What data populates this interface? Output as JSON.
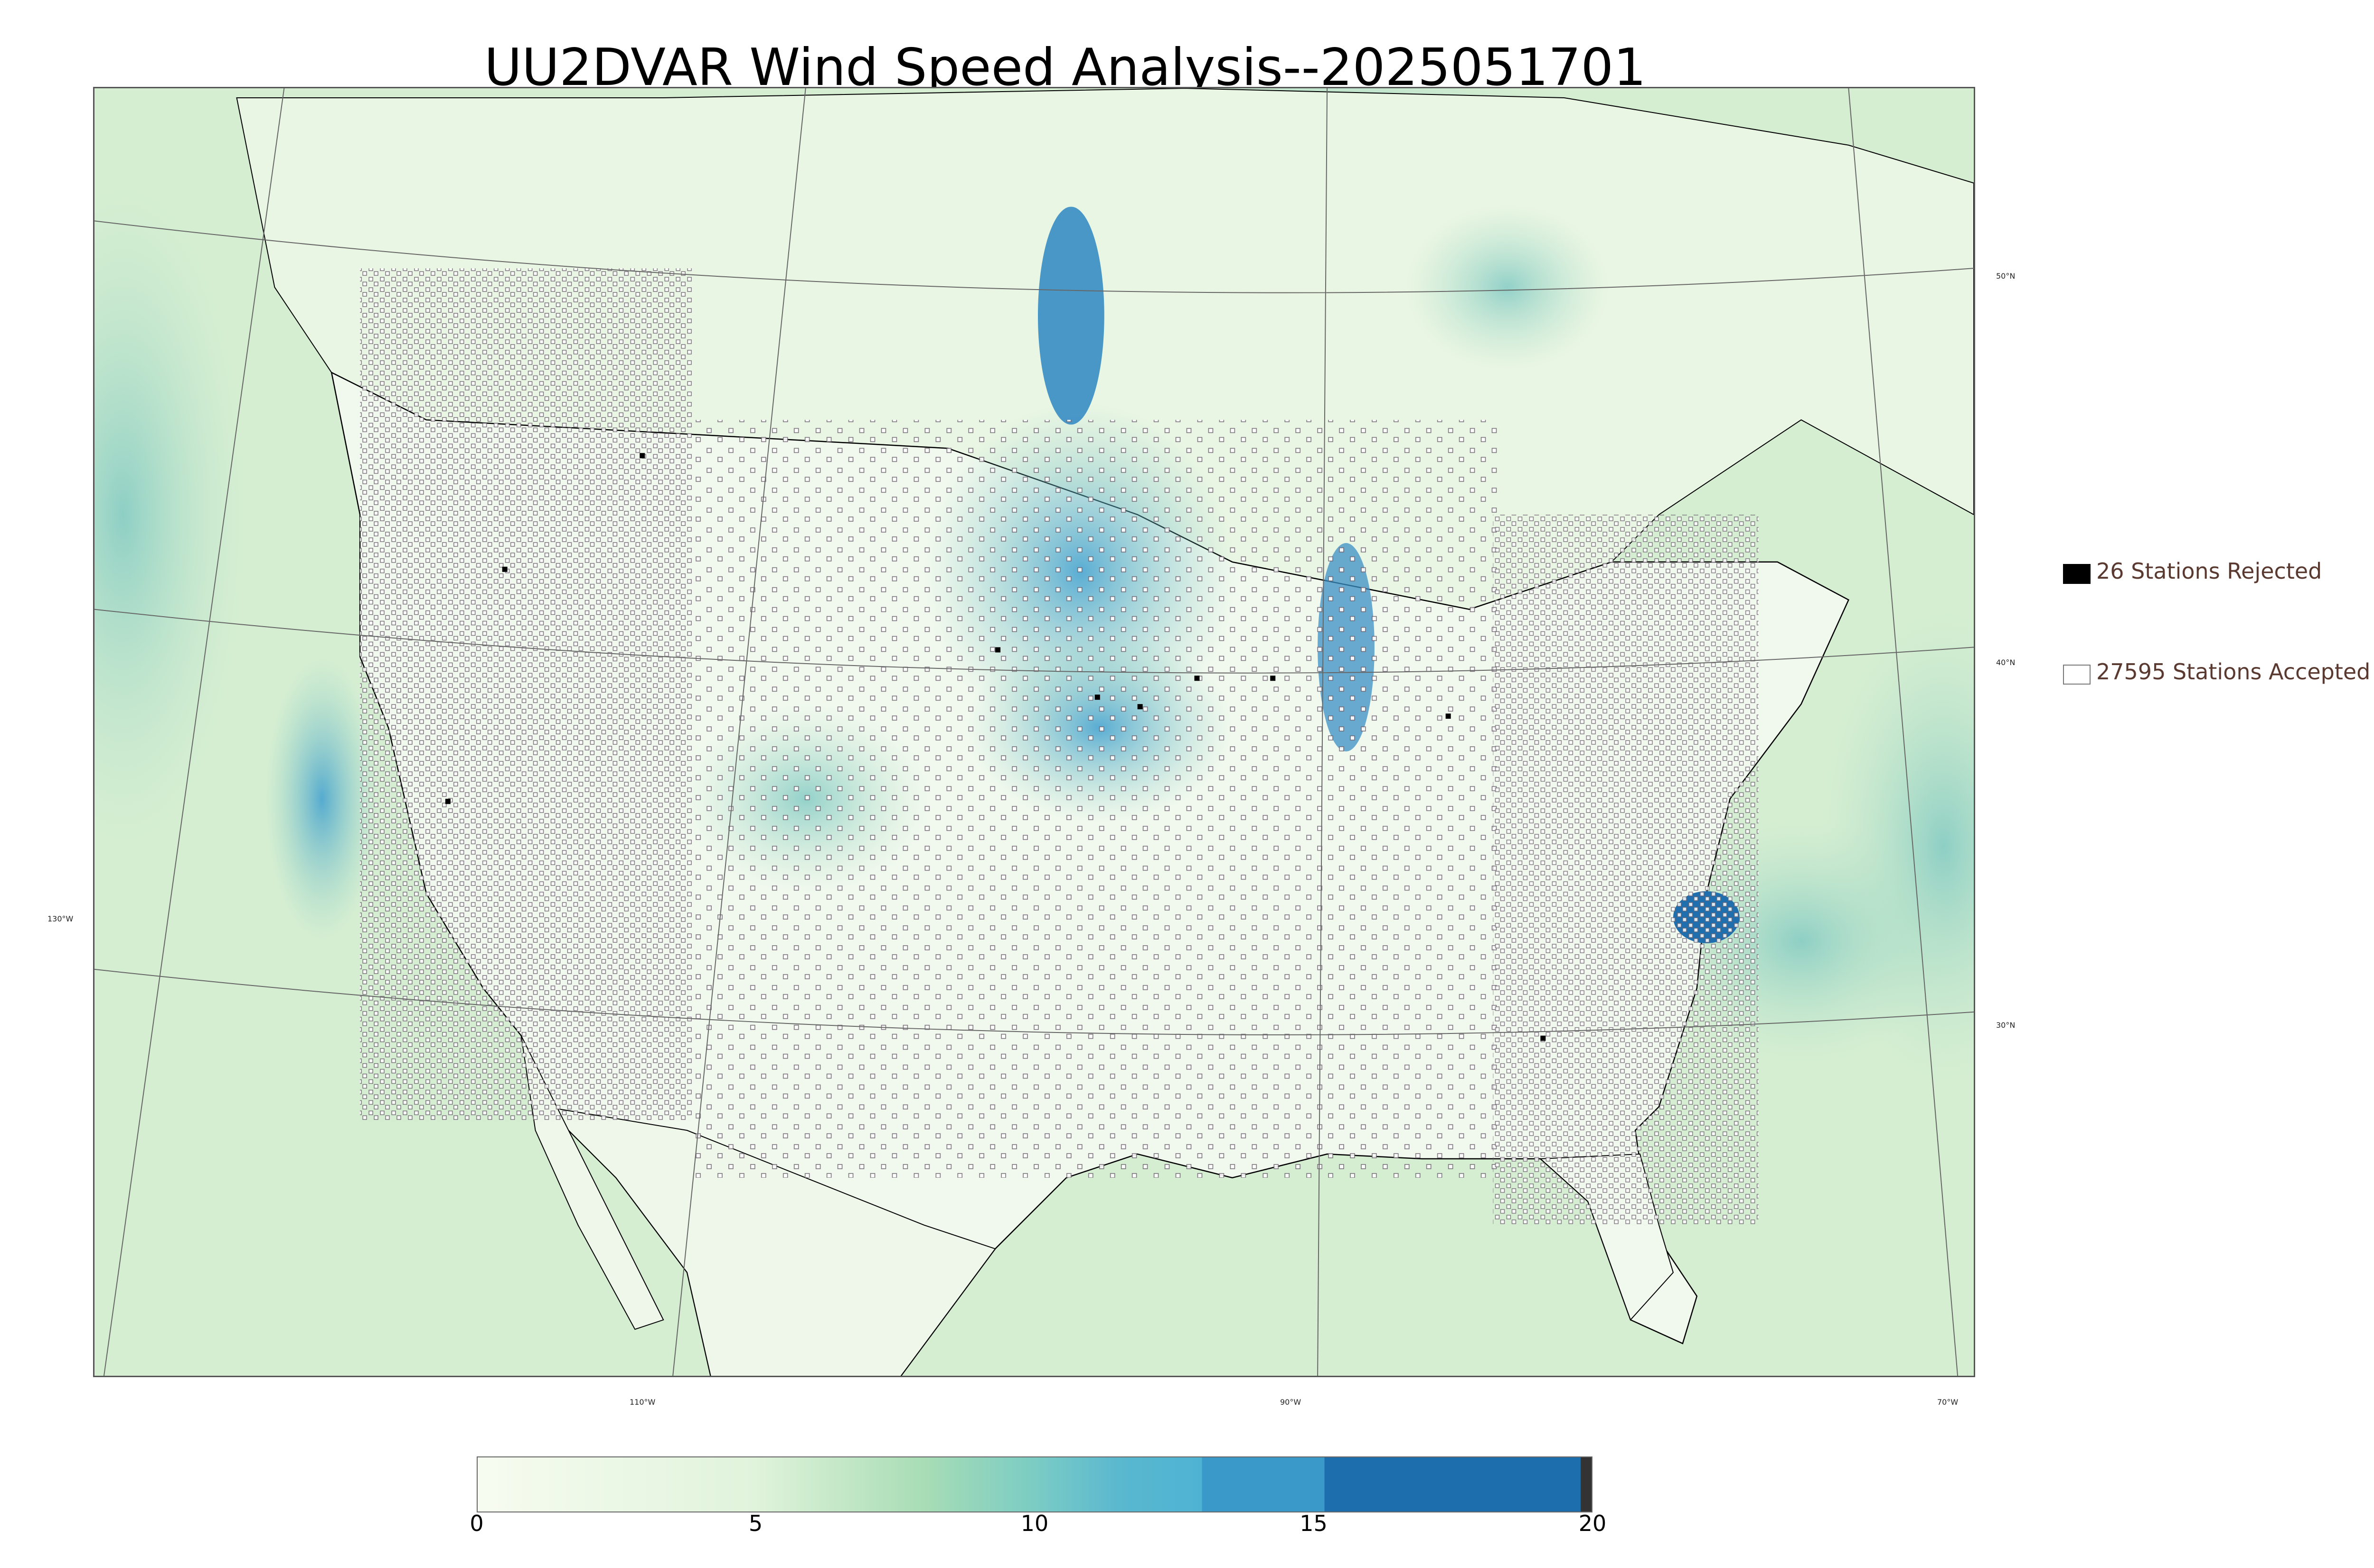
{
  "title": "UU2DVAR Wind Speed Analysis--2025051701",
  "map": {
    "longitude_labels": [
      "110°W",
      "90°W",
      "70°W"
    ],
    "longitude_extra": "130°W",
    "latitude_labels": [
      "50°N",
      "40°N",
      "30°N"
    ],
    "colors": {
      "land_light": "#f2f9ee",
      "ocean": "#cfe9cc",
      "wind_medium": "#8fd0c0",
      "wind_high": "#3f9fcf",
      "wind_very_high": "#1f6fae",
      "station_accepted": "#ffffff",
      "station_rejected": "#000000",
      "coastline": "#000000"
    }
  },
  "legend": {
    "rejected": {
      "label": "26 Stations Rejected",
      "color": "#000000"
    },
    "accepted": {
      "label": "27595 Stations Accepted",
      "color": "#ffffff"
    }
  },
  "colorbar": {
    "ticks": [
      "0",
      "5",
      "10",
      "15",
      "20"
    ],
    "min": 0,
    "max": 20,
    "stops": [
      {
        "value": 0,
        "color": "#f7fcf0"
      },
      {
        "value": 5,
        "color": "#e0f3db"
      },
      {
        "value": 8,
        "color": "#a8ddb5"
      },
      {
        "value": 10,
        "color": "#7bccc4"
      },
      {
        "value": 11.5,
        "color": "#5ab8cf"
      },
      {
        "value": 13,
        "color": "#4eb3d3"
      },
      {
        "value": 13.01,
        "color": "#3a99c9"
      },
      {
        "value": 15.2,
        "color": "#3a99c9"
      },
      {
        "value": 15.21,
        "color": "#1c6fac"
      },
      {
        "value": 19.8,
        "color": "#1c6fac"
      },
      {
        "value": 19.81,
        "color": "#333333"
      },
      {
        "value": 20,
        "color": "#333333"
      }
    ]
  }
}
